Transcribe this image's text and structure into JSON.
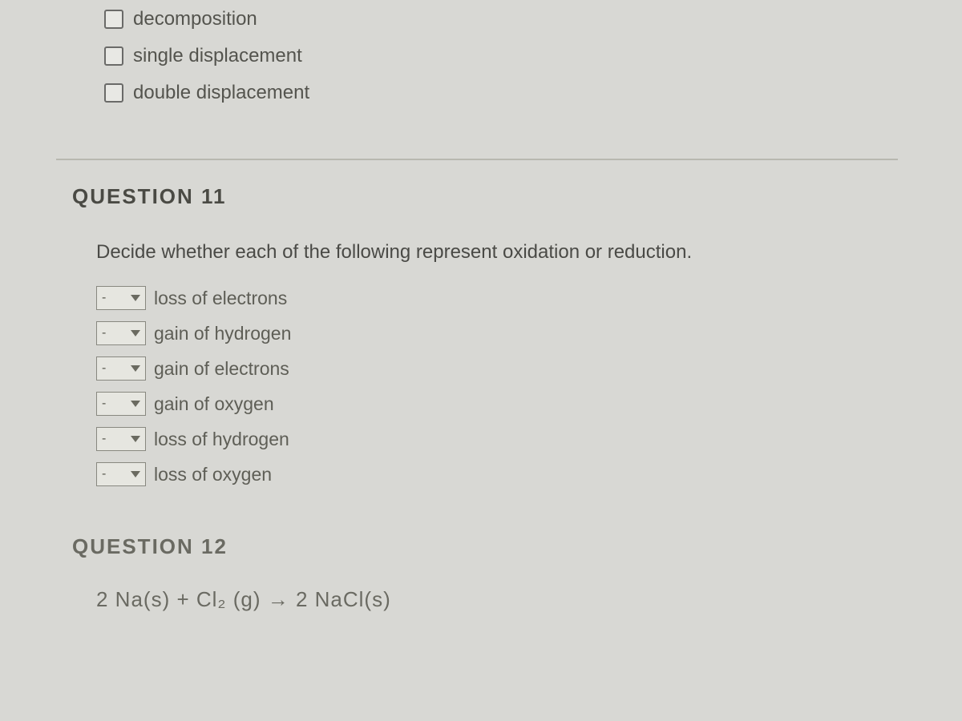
{
  "colors": {
    "background": "#d8d8d4",
    "text_primary": "#54544e",
    "text_heading": "#4a4a44",
    "text_faded": "#6a6a62",
    "checkbox_border": "#6a6a68",
    "dropdown_border": "#888880",
    "divider": "#b8b8b0"
  },
  "question10_partial": {
    "checkbox_options": [
      {
        "label": "decomposition",
        "checked": false
      },
      {
        "label": "single displacement",
        "checked": false
      },
      {
        "label": "double displacement",
        "checked": false
      }
    ]
  },
  "question11": {
    "heading": "QUESTION 11",
    "prompt": "Decide whether each of the following represent oxidation or reduction.",
    "matching_items": [
      {
        "selected": "-",
        "label": "loss of electrons"
      },
      {
        "selected": "-",
        "label": "gain of hydrogen"
      },
      {
        "selected": "-",
        "label": "gain of electrons"
      },
      {
        "selected": "-",
        "label": "gain of oxygen"
      },
      {
        "selected": "-",
        "label": "loss of hydrogen"
      },
      {
        "selected": "-",
        "label": "loss of oxygen"
      }
    ]
  },
  "question12": {
    "heading": "QUESTION 12",
    "equation_html": "2 Na(s) + Cl₂ (g) → 2 NaCl(s)"
  }
}
